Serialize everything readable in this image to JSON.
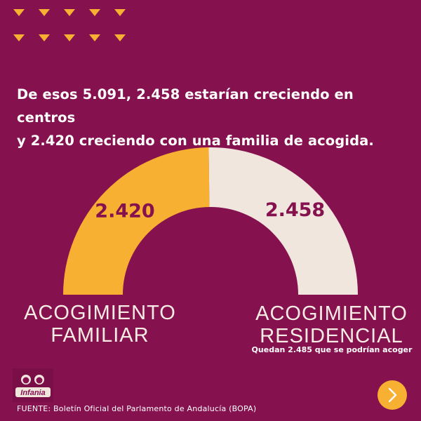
{
  "headline": {
    "line1": "De esos 5.091, 2.458 estarían creciendo en centros",
    "line2": "y 2.420 creciendo con una familia de acogida."
  },
  "chart_data": {
    "type": "pie",
    "style": "half-donut",
    "series": [
      {
        "label_lines": [
          "ACOGIMIENTO",
          "FAMILIAR"
        ],
        "value": 2420,
        "value_label": "2.420",
        "color": "#f7b032"
      },
      {
        "label_lines": [
          "ACOGIMIENTO",
          "RESIDENCIAL"
        ],
        "value": 2458,
        "value_label": "2.458",
        "color": "#f0e6dd"
      }
    ],
    "annotation": "Quedan 2.485 que se podrían acoger"
  },
  "footer": {
    "source": "FUENTE: Boletín Oficial del Parlamento de Andalucía (BOPA)",
    "logo_text": "Infania"
  },
  "nav": {
    "next_icon": "chevron-right-icon"
  },
  "colors": {
    "background": "#85114f",
    "accent": "#f7b032",
    "cream": "#f0e6dd"
  }
}
